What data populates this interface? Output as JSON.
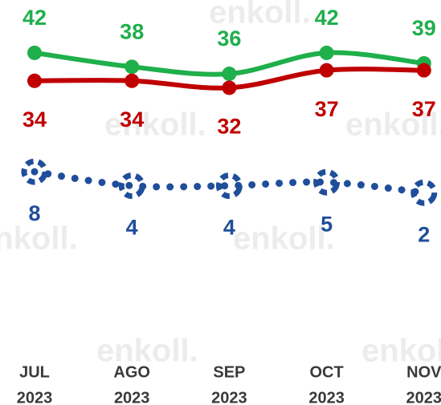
{
  "chart_data": {
    "type": "line",
    "watermark": "enkoll.",
    "categories": [
      [
        "JUL",
        "2023"
      ],
      [
        "AGO",
        "2023"
      ],
      [
        "SEP",
        "2023"
      ],
      [
        "OCT",
        "2023"
      ],
      [
        "NOV",
        "2023"
      ]
    ],
    "ylim": [
      0,
      50
    ],
    "series": [
      {
        "color": "#1faf4b",
        "style": "solid",
        "label_position": "above",
        "values": [
          42,
          38,
          36,
          42,
          39
        ]
      },
      {
        "color": "#c00000",
        "style": "solid",
        "label_position": "below",
        "values": [
          34,
          34,
          32,
          37,
          37
        ]
      },
      {
        "color": "#1f4e9a",
        "style": "dotted",
        "label_position": "below",
        "values": [
          8,
          4,
          4,
          5,
          2
        ]
      }
    ]
  }
}
